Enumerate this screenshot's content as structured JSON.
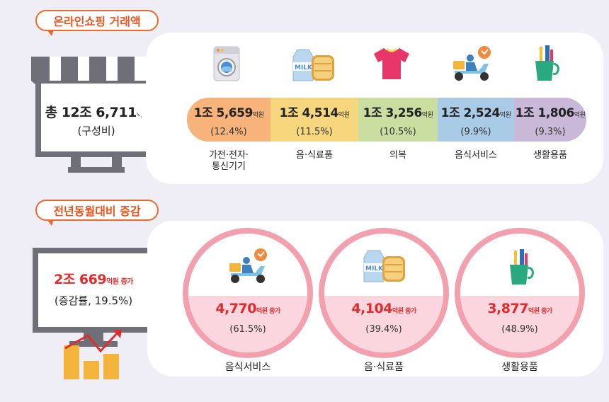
{
  "section1": {
    "tag": "온라인쇼핑 거래액",
    "total_prefix": "총 12조 6,711",
    "total_unit": "억원",
    "total_sub": "(구성비)",
    "items": [
      {
        "amount": "1조 5,659",
        "unit": "억원",
        "pct": "(12.4%)",
        "label1": "가전·전자·",
        "label2": "통신기기",
        "icon": "washing-machine-icon",
        "color": "#f7b37a"
      },
      {
        "amount": "1조 4,514",
        "unit": "억원",
        "pct": "(11.5%)",
        "label1": "음·식료품",
        "label2": "",
        "icon": "milk-bread-icon",
        "color": "#f6d77e"
      },
      {
        "amount": "1조 3,256",
        "unit": "억원",
        "pct": "(10.5%)",
        "label1": "의복",
        "label2": "",
        "icon": "tshirt-icon",
        "color": "#c9dea0"
      },
      {
        "amount": "1조 2,524",
        "unit": "억원",
        "pct": "(9.9%)",
        "label1": "음식서비스",
        "label2": "",
        "icon": "delivery-scooter-icon",
        "color": "#a9cbe6"
      },
      {
        "amount": "1조 1,806",
        "unit": "억원",
        "pct": "(9.3%)",
        "label1": "생활용품",
        "label2": "",
        "icon": "toothbrush-cup-icon",
        "color": "#c9b8d8"
      }
    ]
  },
  "section2": {
    "tag": "전년동월대비 증감",
    "total_amount": "2조 669",
    "total_unit": "억원 증가",
    "total_sub": "(증감률, 19.5%)",
    "items": [
      {
        "amount": "4,770",
        "unit": "억원 증가",
        "pct": "(61.5%)",
        "label": "음식서비스",
        "icon": "delivery-scooter-icon"
      },
      {
        "amount": "4,104",
        "unit": "억원 증가",
        "pct": "(39.4%)",
        "label": "음·식료품",
        "icon": "milk-bread-icon"
      },
      {
        "amount": "3,877",
        "unit": "억원 증가",
        "pct": "(48.9%)",
        "label": "생활용품",
        "icon": "toothbrush-cup-icon"
      }
    ]
  }
}
